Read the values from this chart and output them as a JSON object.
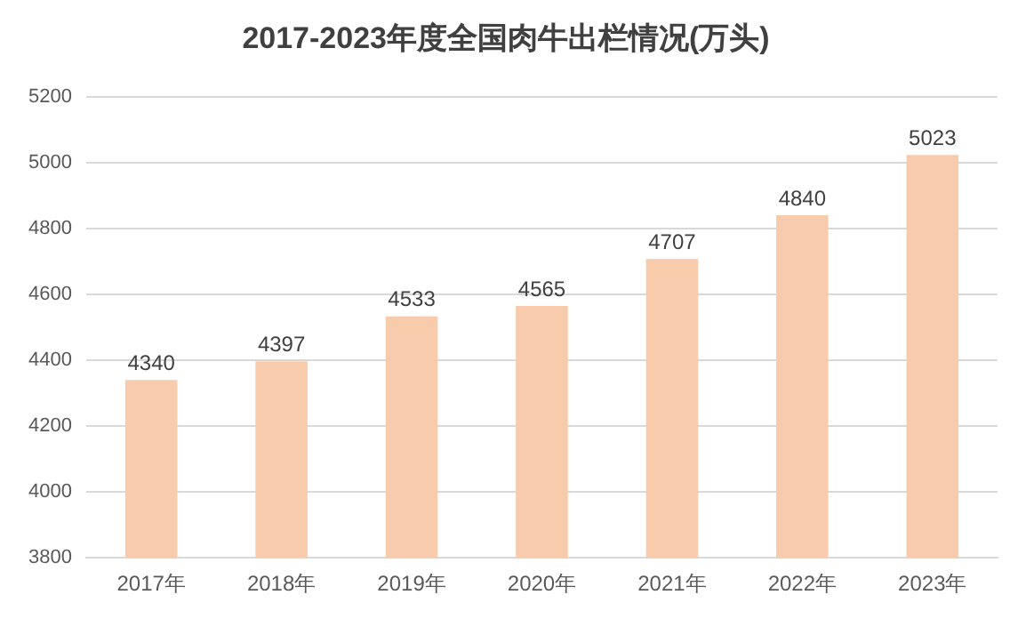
{
  "chart_data": {
    "type": "bar",
    "title": "2017-2023年度全国肉牛出栏情况(万头)",
    "categories": [
      "2017年",
      "2018年",
      "2019年",
      "2020年",
      "2021年",
      "2022年",
      "2023年"
    ],
    "values": [
      4340,
      4397,
      4533,
      4565,
      4707,
      4840,
      5023
    ],
    "color": "#f8cbad",
    "ylim": [
      3800,
      5200
    ],
    "yticks": [
      3800,
      4000,
      4200,
      4400,
      4600,
      4800,
      5000,
      5200
    ],
    "grid": "y",
    "data_labels": true,
    "legend": false
  }
}
